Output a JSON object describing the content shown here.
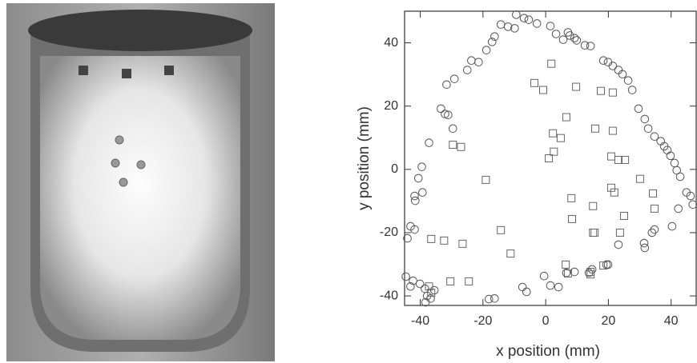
{
  "chart_data": {
    "type": "scatter",
    "xlabel": "x position (mm)",
    "ylabel": "y position (mm)",
    "xlim": [
      -45,
      48
    ],
    "ylim": [
      -43,
      50
    ],
    "xticks": [
      -40,
      -20,
      0,
      20,
      40
    ],
    "yticks": [
      -40,
      -20,
      0,
      20,
      40
    ],
    "series": [
      {
        "marker": "circle",
        "color": "#555555",
        "x": [
          -14.3,
          -12.0,
          -9.9,
          -9.4,
          -6.9,
          -5.4,
          -2.8,
          1.5,
          3.3,
          7.1,
          7.7,
          9.2,
          9.9,
          5.6,
          12.5,
          14.3,
          18.4,
          19.9,
          21.4,
          23.2,
          24.5,
          26.3,
          27.6,
          29.6,
          31.6,
          32.7,
          34.7,
          36.7,
          37.8,
          38.8,
          39.8,
          41.1,
          41.8,
          42.9,
          44.9,
          46.2,
          46.9,
          -16.3,
          -17.1,
          -18.9,
          -21.4,
          -23.7,
          -25.0,
          -29.1,
          -31.6,
          -33.4,
          -32.1,
          -31.1,
          -29.6,
          -37.2,
          -39.5,
          -40.6,
          -41.8,
          -41.6,
          -39.3,
          -43.1,
          -41.8,
          -44.1,
          -44.6,
          -42.3,
          -40.1,
          -43.1,
          -38.5,
          -35.5,
          -37.8,
          -38.3,
          -36.7,
          -18.1,
          -16.3,
          -7.4,
          -6.1,
          -0.5,
          1.5,
          4.1,
          9.2,
          6.6,
          13.8,
          14.8,
          19.4,
          19.9,
          23.2,
          31.4,
          31.6,
          33.9,
          34.7,
          40.3,
          42.3
        ],
        "values": [
          45.8,
          45.1,
          44.6,
          48.9,
          47.8,
          47.3,
          46.1,
          45.3,
          42.8,
          43.3,
          42.3,
          41.5,
          40.8,
          41.0,
          39.2,
          39.0,
          34.4,
          33.9,
          32.7,
          31.4,
          30.1,
          28.1,
          25.1,
          19.2,
          15.9,
          12.9,
          10.4,
          8.9,
          7.3,
          6.1,
          4.3,
          2.0,
          -0.3,
          -2.3,
          -7.3,
          -8.4,
          -11.1,
          42.0,
          40.3,
          37.7,
          33.9,
          34.4,
          31.4,
          28.6,
          26.8,
          19.2,
          17.5,
          17.2,
          12.9,
          8.4,
          0.8,
          -2.8,
          -8.4,
          -9.9,
          -7.3,
          -18.0,
          -19.0,
          -21.8,
          -33.9,
          -35.2,
          -36.2,
          -37.0,
          -37.7,
          -38.2,
          -40.0,
          -42.0,
          -40.8,
          -41.0,
          -40.8,
          -37.2,
          -38.7,
          -33.7,
          -36.7,
          -37.2,
          -32.4,
          -32.7,
          -32.7,
          -31.6,
          -30.1,
          -30.1,
          -23.8,
          -23.3,
          -24.8,
          -20.0,
          -19.0,
          -18.0,
          -12.4
        ]
      },
      {
        "marker": "square",
        "color": "#666666",
        "x": [
          1.8,
          -3.6,
          -0.8,
          9.7,
          17.6,
          21.4,
          6.6,
          15.8,
          21.4,
          2.3,
          4.8,
          2.6,
          1.0,
          20.9,
          23.2,
          25.3,
          -29.6,
          -27.0,
          -19.1,
          30.1,
          20.9,
          21.9,
          34.2,
          8.2,
          8.4,
          15.1,
          34.7,
          25.0,
          15.1,
          15.6,
          -14.3,
          23.7,
          -36.5,
          -32.4,
          -26.5,
          -11.2,
          6.4,
          7.1,
          14.3,
          14.3,
          18.4,
          -30.4,
          -24.5,
          -37.2,
          -36.5
        ],
        "values": [
          33.4,
          27.3,
          25.1,
          26.1,
          24.8,
          24.3,
          16.5,
          12.9,
          12.2,
          11.4,
          9.9,
          5.6,
          3.5,
          4.1,
          3.0,
          3.0,
          7.8,
          7.1,
          -3.3,
          -3.0,
          -5.8,
          -7.3,
          -7.6,
          -9.1,
          -15.7,
          -11.6,
          -12.4,
          -14.7,
          -20.0,
          -20.0,
          -19.2,
          -20.0,
          -22.0,
          -22.5,
          -23.5,
          -26.6,
          -30.1,
          -32.9,
          -33.2,
          -32.4,
          -30.4,
          -35.4,
          -35.4,
          -37.0,
          -39.0
        ]
      }
    ]
  }
}
